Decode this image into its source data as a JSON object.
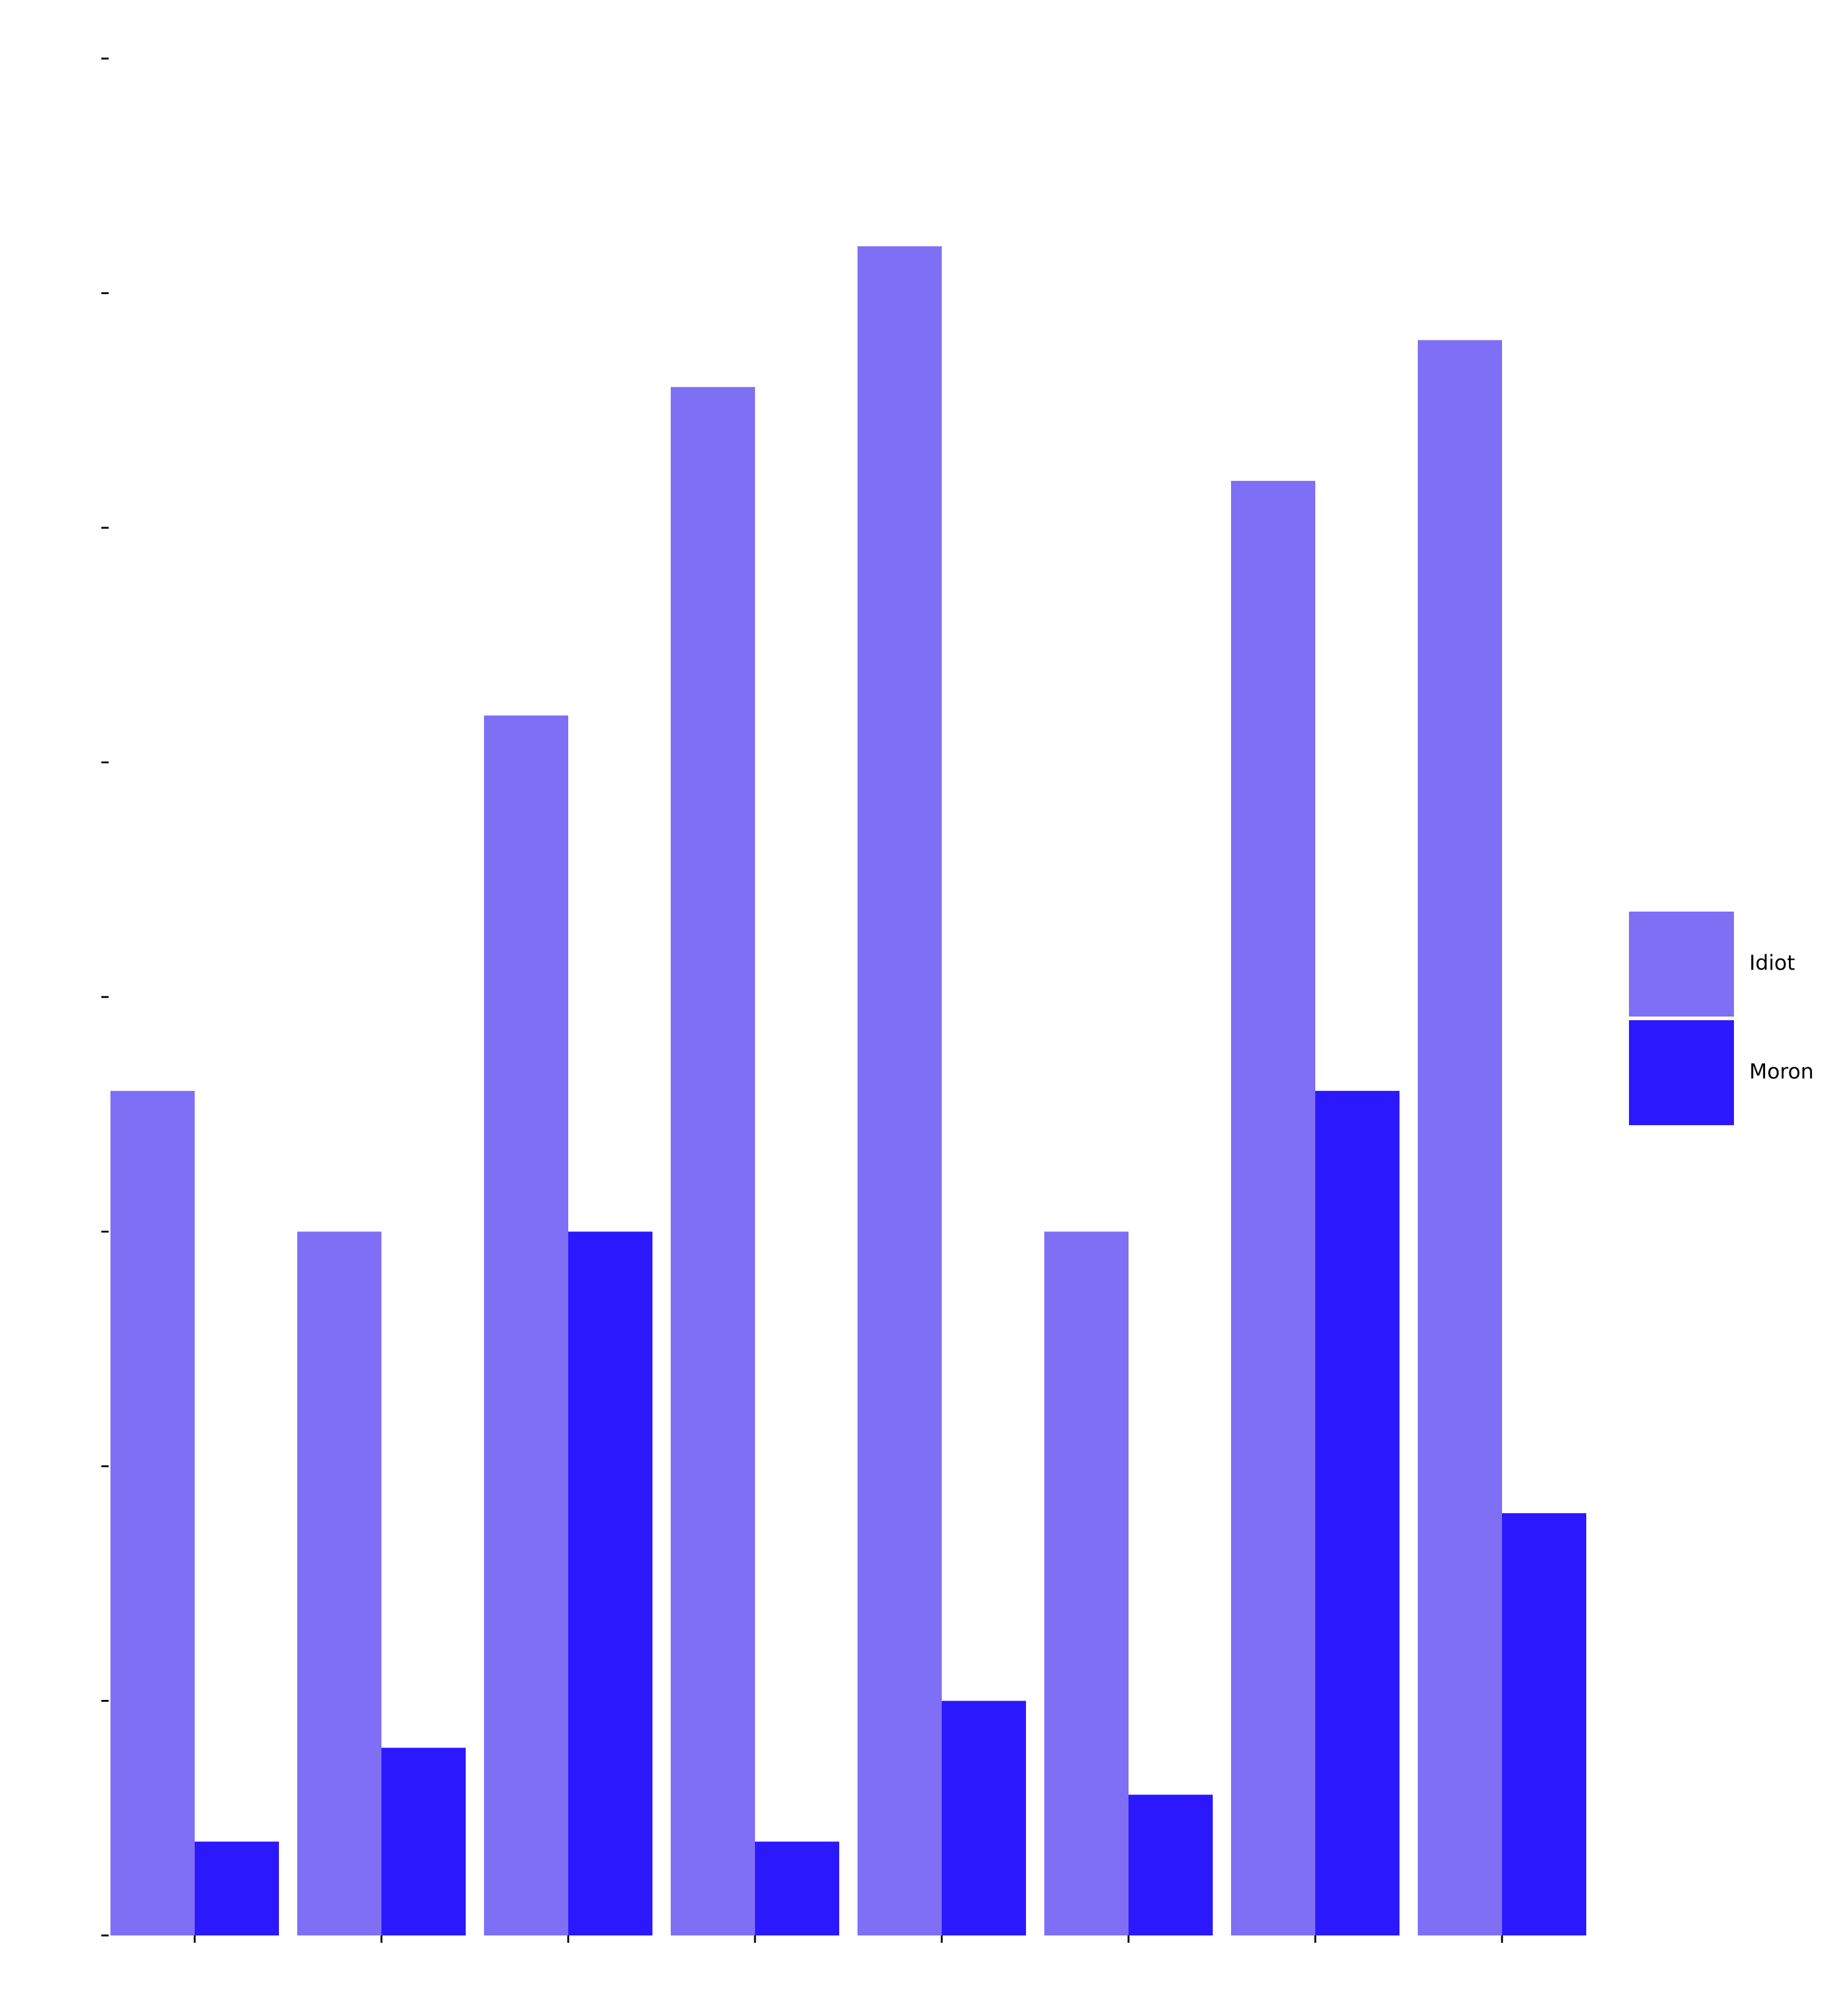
{
  "chart_data": {
    "type": "bar",
    "categories": [
      null,
      null,
      null,
      null,
      null,
      null,
      null,
      null
    ],
    "series": [
      {
        "name": "Idiot",
        "color": "#7f6ff5",
        "values": [
          18,
          15,
          26,
          33,
          36,
          15,
          31,
          34
        ]
      },
      {
        "name": "Moron",
        "color": "#2c18fd",
        "values": [
          2,
          4,
          15,
          2,
          5,
          3,
          18,
          9
        ]
      }
    ],
    "ylim": [
      0,
      40
    ],
    "yticks": [
      0,
      5,
      10,
      15,
      20,
      25,
      30,
      35,
      40
    ],
    "grid": false,
    "legend": "right"
  }
}
